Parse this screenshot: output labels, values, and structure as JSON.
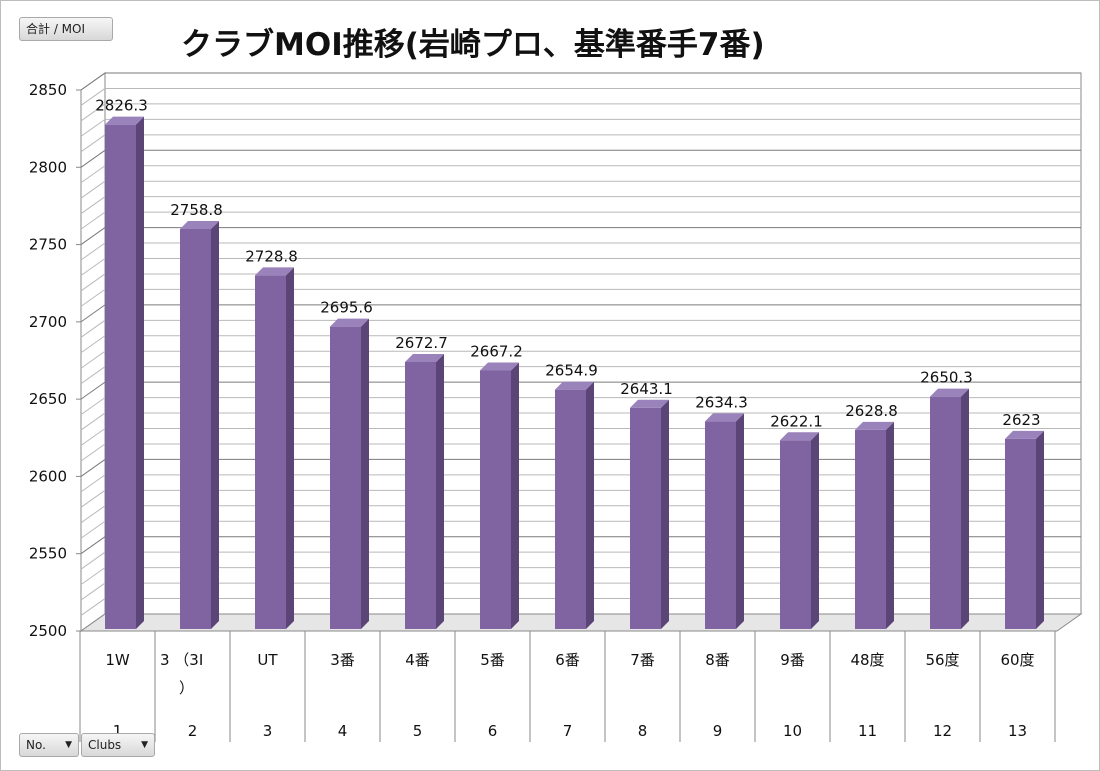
{
  "field_buttons": {
    "values": "合計 / MOI",
    "row_no": "No.",
    "row_clubs": "Clubs"
  },
  "chart_data": {
    "type": "bar",
    "title": "クラブMOI推移(岩崎プロ、基準番手7番)",
    "xlabel": "",
    "ylabel": "",
    "ylim": [
      2500,
      2850
    ],
    "ytick_step": 50,
    "grid": true,
    "bar_color": "#8064a2",
    "categories": [
      {
        "no": "1",
        "club": "1W"
      },
      {
        "no": "2",
        "club": "3 （3I）"
      },
      {
        "no": "3",
        "club": "UT"
      },
      {
        "no": "4",
        "club": "3番"
      },
      {
        "no": "5",
        "club": "4番"
      },
      {
        "no": "6",
        "club": "5番"
      },
      {
        "no": "7",
        "club": "6番"
      },
      {
        "no": "8",
        "club": "7番"
      },
      {
        "no": "9",
        "club": "8番"
      },
      {
        "no": "10",
        "club": "9番"
      },
      {
        "no": "11",
        "club": "48度"
      },
      {
        "no": "12",
        "club": "56度"
      },
      {
        "no": "13",
        "club": "60度"
      }
    ],
    "values": [
      2826.3,
      2758.8,
      2728.8,
      2695.6,
      2672.7,
      2667.2,
      2654.9,
      2643.1,
      2634.3,
      2622.1,
      2628.8,
      2650.3,
      2623
    ],
    "value_labels": [
      "2826.3",
      "2758.8",
      "2728.8",
      "2695.6",
      "2672.7",
      "2667.2",
      "2654.9",
      "2643.1",
      "2634.3",
      "2622.1",
      "2628.8",
      "2650.3",
      "2623"
    ]
  }
}
